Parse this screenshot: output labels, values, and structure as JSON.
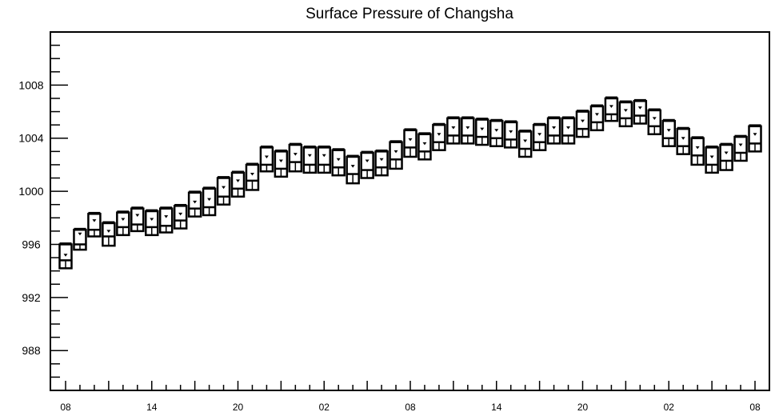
{
  "chart_data": {
    "type": "boxplot",
    "title": "Surface Pressure of Changsha",
    "xlabel": "",
    "ylabel": "",
    "ylim": [
      985,
      1012
    ],
    "yticks": [
      "988",
      "992",
      "996",
      "1000",
      "1004",
      "1008"
    ],
    "xtick_labels": [
      "08",
      "14",
      "20",
      "02",
      "08",
      "14",
      "20",
      "02",
      "08"
    ],
    "x_hours": [
      0,
      3,
      6,
      9,
      12,
      15,
      18,
      21,
      24,
      27,
      30,
      33,
      36,
      39,
      42,
      45,
      48
    ],
    "grid": false,
    "boxes": [
      {
        "x": 0,
        "whislo": 994.2,
        "q1": 994.2,
        "median": 994.8,
        "mean": 995.2,
        "q3": 996.0,
        "whishi": 996.1
      },
      {
        "x": 1,
        "whislo": 995.6,
        "q1": 995.6,
        "median": 996.0,
        "mean": 996.8,
        "q3": 997.1,
        "whishi": 997.2
      },
      {
        "x": 2,
        "whislo": 996.6,
        "q1": 996.6,
        "median": 997.1,
        "mean": 997.8,
        "q3": 998.3,
        "whishi": 998.4
      },
      {
        "x": 3,
        "whislo": 995.9,
        "q1": 995.9,
        "median": 996.6,
        "mean": 997.0,
        "q3": 997.6,
        "whishi": 997.7
      },
      {
        "x": 4,
        "whislo": 996.7,
        "q1": 996.7,
        "median": 997.3,
        "mean": 997.9,
        "q3": 998.4,
        "whishi": 998.5
      },
      {
        "x": 5,
        "whislo": 997.0,
        "q1": 997.0,
        "median": 997.5,
        "mean": 998.2,
        "q3": 998.7,
        "whishi": 998.8
      },
      {
        "x": 6,
        "whislo": 996.7,
        "q1": 996.7,
        "median": 997.3,
        "mean": 997.9,
        "q3": 998.5,
        "whishi": 998.6
      },
      {
        "x": 7,
        "whislo": 996.9,
        "q1": 996.9,
        "median": 997.4,
        "mean": 998.1,
        "q3": 998.7,
        "whishi": 998.8
      },
      {
        "x": 8,
        "whislo": 997.2,
        "q1": 997.2,
        "median": 997.8,
        "mean": 998.3,
        "q3": 998.9,
        "whishi": 999.0
      },
      {
        "x": 9,
        "whislo": 998.1,
        "q1": 998.1,
        "median": 998.7,
        "mean": 999.2,
        "q3": 999.9,
        "whishi": 1000.0
      },
      {
        "x": 10,
        "whislo": 998.2,
        "q1": 998.2,
        "median": 998.8,
        "mean": 999.4,
        "q3": 1000.2,
        "whishi": 1000.3
      },
      {
        "x": 11,
        "whislo": 999.0,
        "q1": 999.0,
        "median": 999.6,
        "mean": 1000.3,
        "q3": 1001.0,
        "whishi": 1001.1
      },
      {
        "x": 12,
        "whislo": 999.6,
        "q1": 999.6,
        "median": 1000.2,
        "mean": 1000.8,
        "q3": 1001.4,
        "whishi": 1001.5
      },
      {
        "x": 13,
        "whislo": 1000.1,
        "q1": 1000.1,
        "median": 1000.8,
        "mean": 1001.3,
        "q3": 1002.0,
        "whishi": 1002.1
      },
      {
        "x": 14,
        "whislo": 1001.5,
        "q1": 1001.5,
        "median": 1002.0,
        "mean": 1002.6,
        "q3": 1003.3,
        "whishi": 1003.4
      },
      {
        "x": 15,
        "whislo": 1001.1,
        "q1": 1001.1,
        "median": 1001.7,
        "mean": 1002.3,
        "q3": 1003.0,
        "whishi": 1003.1
      },
      {
        "x": 16,
        "whislo": 1001.5,
        "q1": 1001.5,
        "median": 1002.2,
        "mean": 1002.8,
        "q3": 1003.5,
        "whishi": 1003.6
      },
      {
        "x": 17,
        "whislo": 1001.4,
        "q1": 1001.4,
        "median": 1002.0,
        "mean": 1002.7,
        "q3": 1003.3,
        "whishi": 1003.4
      },
      {
        "x": 18,
        "whislo": 1001.4,
        "q1": 1001.4,
        "median": 1002.0,
        "mean": 1002.7,
        "q3": 1003.3,
        "whishi": 1003.4
      },
      {
        "x": 19,
        "whislo": 1001.2,
        "q1": 1001.2,
        "median": 1001.8,
        "mean": 1002.4,
        "q3": 1003.1,
        "whishi": 1003.2
      },
      {
        "x": 20,
        "whislo": 1000.6,
        "q1": 1000.6,
        "median": 1001.3,
        "mean": 1001.9,
        "q3": 1002.6,
        "whishi": 1002.7
      },
      {
        "x": 21,
        "whislo": 1001.0,
        "q1": 1001.0,
        "median": 1001.6,
        "mean": 1002.3,
        "q3": 1002.9,
        "whishi": 1003.0
      },
      {
        "x": 22,
        "whislo": 1001.2,
        "q1": 1001.2,
        "median": 1001.8,
        "mean": 1002.4,
        "q3": 1003.0,
        "whishi": 1003.1
      },
      {
        "x": 23,
        "whislo": 1001.7,
        "q1": 1001.7,
        "median": 1002.4,
        "mean": 1003.0,
        "q3": 1003.7,
        "whishi": 1003.8
      },
      {
        "x": 24,
        "whislo": 1002.6,
        "q1": 1002.6,
        "median": 1003.3,
        "mean": 1003.9,
        "q3": 1004.6,
        "whishi": 1004.7
      },
      {
        "x": 25,
        "whislo": 1002.4,
        "q1": 1002.4,
        "median": 1003.0,
        "mean": 1003.6,
        "q3": 1004.3,
        "whishi": 1004.4
      },
      {
        "x": 26,
        "whislo": 1003.1,
        "q1": 1003.1,
        "median": 1003.7,
        "mean": 1004.3,
        "q3": 1005.0,
        "whishi": 1005.1
      },
      {
        "x": 27,
        "whislo": 1003.6,
        "q1": 1003.6,
        "median": 1004.2,
        "mean": 1004.8,
        "q3": 1005.5,
        "whishi": 1005.6
      },
      {
        "x": 28,
        "whislo": 1003.6,
        "q1": 1003.6,
        "median": 1004.2,
        "mean": 1004.8,
        "q3": 1005.5,
        "whishi": 1005.6
      },
      {
        "x": 29,
        "whislo": 1003.5,
        "q1": 1003.5,
        "median": 1004.1,
        "mean": 1004.7,
        "q3": 1005.4,
        "whishi": 1005.5
      },
      {
        "x": 30,
        "whislo": 1003.4,
        "q1": 1003.4,
        "median": 1004.0,
        "mean": 1004.6,
        "q3": 1005.3,
        "whishi": 1005.4
      },
      {
        "x": 31,
        "whislo": 1003.3,
        "q1": 1003.3,
        "median": 1003.9,
        "mean": 1004.5,
        "q3": 1005.2,
        "whishi": 1005.3
      },
      {
        "x": 32,
        "whislo": 1002.6,
        "q1": 1002.6,
        "median": 1003.2,
        "mean": 1003.8,
        "q3": 1004.5,
        "whishi": 1004.6
      },
      {
        "x": 33,
        "whislo": 1003.1,
        "q1": 1003.1,
        "median": 1003.7,
        "mean": 1004.3,
        "q3": 1005.0,
        "whishi": 1005.1
      },
      {
        "x": 34,
        "whislo": 1003.6,
        "q1": 1003.6,
        "median": 1004.2,
        "mean": 1004.8,
        "q3": 1005.5,
        "whishi": 1005.6
      },
      {
        "x": 35,
        "whislo": 1003.6,
        "q1": 1003.6,
        "median": 1004.2,
        "mean": 1004.8,
        "q3": 1005.5,
        "whishi": 1005.6
      },
      {
        "x": 36,
        "whislo": 1004.1,
        "q1": 1004.1,
        "median": 1004.7,
        "mean": 1005.3,
        "q3": 1006.0,
        "whishi": 1006.1
      },
      {
        "x": 37,
        "whislo": 1004.6,
        "q1": 1004.6,
        "median": 1005.2,
        "mean": 1005.8,
        "q3": 1006.4,
        "whishi": 1006.5
      },
      {
        "x": 38,
        "whislo": 1005.3,
        "q1": 1005.3,
        "median": 1005.8,
        "mean": 1006.4,
        "q3": 1007.0,
        "whishi": 1007.1
      },
      {
        "x": 39,
        "whislo": 1004.9,
        "q1": 1004.9,
        "median": 1005.5,
        "mean": 1006.1,
        "q3": 1006.7,
        "whishi": 1006.8
      },
      {
        "x": 40,
        "whislo": 1005.1,
        "q1": 1005.1,
        "median": 1005.7,
        "mean": 1006.3,
        "q3": 1006.8,
        "whishi": 1006.9
      },
      {
        "x": 41,
        "whislo": 1004.3,
        "q1": 1004.3,
        "median": 1004.9,
        "mean": 1005.5,
        "q3": 1006.1,
        "whishi": 1006.2
      },
      {
        "x": 42,
        "whislo": 1003.4,
        "q1": 1003.4,
        "median": 1004.0,
        "mean": 1004.6,
        "q3": 1005.3,
        "whishi": 1005.4
      },
      {
        "x": 43,
        "whislo": 1002.8,
        "q1": 1002.8,
        "median": 1003.4,
        "mean": 1004.0,
        "q3": 1004.7,
        "whishi": 1004.8
      },
      {
        "x": 44,
        "whislo": 1002.0,
        "q1": 1002.0,
        "median": 1002.7,
        "mean": 1003.3,
        "q3": 1004.0,
        "whishi": 1004.1
      },
      {
        "x": 45,
        "whislo": 1001.4,
        "q1": 1001.4,
        "median": 1002.0,
        "mean": 1002.6,
        "q3": 1003.3,
        "whishi": 1003.4
      },
      {
        "x": 46,
        "whislo": 1001.6,
        "q1": 1001.6,
        "median": 1002.3,
        "mean": 1002.9,
        "q3": 1003.5,
        "whishi": 1003.6
      },
      {
        "x": 47,
        "whislo": 1002.3,
        "q1": 1002.3,
        "median": 1002.9,
        "mean": 1003.5,
        "q3": 1004.1,
        "whishi": 1004.2
      },
      {
        "x": 48,
        "whislo": 1003.0,
        "q1": 1003.0,
        "median": 1003.6,
        "mean": 1004.3,
        "q3": 1004.9,
        "whishi": 1005.0
      }
    ]
  }
}
